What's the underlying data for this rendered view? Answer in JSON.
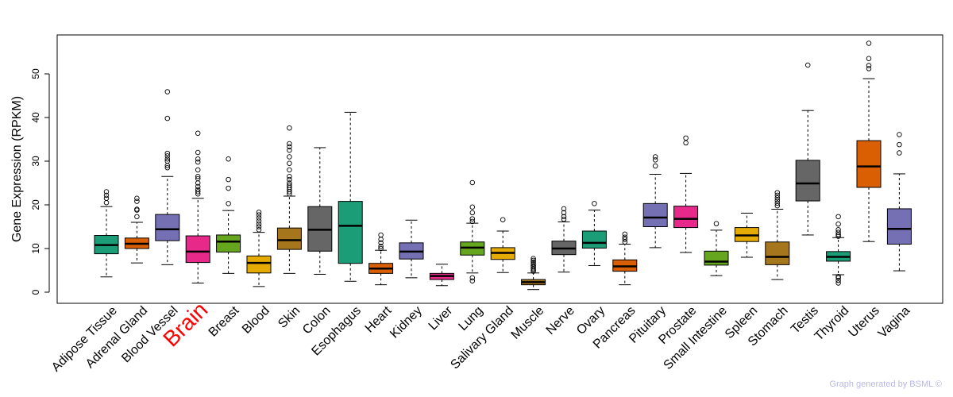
{
  "chart_data": {
    "type": "boxplot",
    "ylabel": "Gene Expression (RPKM)",
    "ylim": [
      -2,
      58
    ],
    "yticks": [
      0,
      10,
      20,
      30,
      40,
      50
    ],
    "highlight_category": "Brain",
    "highlight_color": "#ff0000",
    "categories": [
      {
        "name": "Adipose Tissue",
        "color": "#1b9e77",
        "whisker_low": 3.5,
        "q1": 8.8,
        "median": 10.8,
        "q3": 13.0,
        "whisker_high": 19.6,
        "outliers": [
          20.5,
          21.5,
          22.2,
          23.0
        ]
      },
      {
        "name": "Adrenal Gland",
        "color": "#d95f02",
        "whisker_low": 6.7,
        "q1": 10.0,
        "median": 11.1,
        "q3": 12.4,
        "whisker_high": 16.0,
        "outliers": [
          17.3,
          18.8,
          19.0,
          20.8,
          21.5
        ]
      },
      {
        "name": "Blood Vessel",
        "color": "#7570b3",
        "whisker_low": 6.3,
        "q1": 11.8,
        "median": 14.4,
        "q3": 17.8,
        "whisker_high": 26.5,
        "outliers": [
          28.5,
          29.0,
          30.0,
          30.5,
          31.2,
          31.8,
          39.8,
          45.9
        ]
      },
      {
        "name": "Brain",
        "color": "#e7298a",
        "whisker_low": 2.1,
        "q1": 6.8,
        "median": 9.3,
        "q3": 12.9,
        "whisker_high": 21.5,
        "outliers": [
          22.5,
          23.0,
          23.5,
          24.2,
          25.0,
          26.0,
          26.5,
          28.0,
          29.8,
          30.5,
          32.0,
          36.4
        ]
      },
      {
        "name": "Breast",
        "color": "#66a61e",
        "whisker_low": 4.3,
        "q1": 9.2,
        "median": 11.6,
        "q3": 13.1,
        "whisker_high": 18.7,
        "outliers": [
          20.3,
          23.8,
          25.8,
          30.5
        ]
      },
      {
        "name": "Blood",
        "color": "#e6ab02",
        "whisker_low": 1.3,
        "q1": 4.4,
        "median": 6.7,
        "q3": 8.3,
        "whisker_high": 13.7,
        "outliers": [
          14.3,
          15.0,
          15.6,
          16.3,
          17.0,
          17.7,
          18.3
        ]
      },
      {
        "name": "Skin",
        "color": "#a6761d",
        "whisker_low": 4.3,
        "q1": 9.8,
        "median": 11.9,
        "q3": 14.7,
        "whisker_high": 22.0,
        "outliers": [
          22.5,
          23.0,
          23.5,
          24.0,
          24.5,
          25.0,
          25.8,
          26.5,
          28.0,
          29.5,
          31.0,
          32.5,
          33.3,
          34.0,
          37.6
        ]
      },
      {
        "name": "Colon",
        "color": "#666666",
        "whisker_low": 4.1,
        "q1": 9.4,
        "median": 14.3,
        "q3": 19.6,
        "whisker_high": 33.1,
        "outliers": []
      },
      {
        "name": "Esophagus",
        "color": "#1b9e77",
        "whisker_low": 2.5,
        "q1": 6.6,
        "median": 15.2,
        "q3": 20.8,
        "whisker_high": 41.2,
        "outliers": []
      },
      {
        "name": "Heart",
        "color": "#d95f02",
        "whisker_low": 1.7,
        "q1": 4.3,
        "median": 5.4,
        "q3": 6.6,
        "whisker_high": 9.6,
        "outliers": [
          10.0,
          10.5,
          11.3,
          12.1,
          13.1
        ]
      },
      {
        "name": "Kidney",
        "color": "#7570b3",
        "whisker_low": 3.3,
        "q1": 7.6,
        "median": 9.3,
        "q3": 11.3,
        "whisker_high": 16.5,
        "outliers": []
      },
      {
        "name": "Liver",
        "color": "#e7298a",
        "whisker_low": 1.5,
        "q1": 2.9,
        "median": 3.7,
        "q3": 4.3,
        "whisker_high": 6.4,
        "outliers": []
      },
      {
        "name": "Lung",
        "color": "#66a61e",
        "whisker_low": 4.4,
        "q1": 8.5,
        "median": 10.2,
        "q3": 11.5,
        "whisker_high": 15.8,
        "outliers": [
          2.6,
          3.3,
          16.2,
          16.8,
          18.2,
          19.5,
          25.1
        ]
      },
      {
        "name": "Salivary Gland",
        "color": "#e6ab02",
        "whisker_low": 4.5,
        "q1": 7.5,
        "median": 9.0,
        "q3": 10.2,
        "whisker_high": 14.0,
        "outliers": [
          16.6
        ]
      },
      {
        "name": "Muscle",
        "color": "#a6761d",
        "whisker_low": 0.6,
        "q1": 1.7,
        "median": 2.3,
        "q3": 2.9,
        "whisker_high": 4.4,
        "outliers": [
          4.8,
          5.1,
          5.4,
          5.8,
          6.1,
          6.5,
          6.9,
          7.3,
          7.7
        ]
      },
      {
        "name": "Nerve",
        "color": "#666666",
        "whisker_low": 4.6,
        "q1": 8.6,
        "median": 10.0,
        "q3": 11.7,
        "whisker_high": 16.1,
        "outliers": [
          16.7,
          17.3,
          18.2,
          19.1
        ]
      },
      {
        "name": "Ovary",
        "color": "#1b9e77",
        "whisker_low": 6.1,
        "q1": 10.1,
        "median": 11.3,
        "q3": 14.0,
        "whisker_high": 18.8,
        "outliers": [
          20.3
        ]
      },
      {
        "name": "Pancreas",
        "color": "#d95f02",
        "whisker_low": 1.7,
        "q1": 4.8,
        "median": 5.9,
        "q3": 7.4,
        "whisker_high": 11.0,
        "outliers": [
          11.5,
          12.1,
          12.6,
          13.3
        ]
      },
      {
        "name": "Pituitary",
        "color": "#7570b3",
        "whisker_low": 10.2,
        "q1": 15.0,
        "median": 17.1,
        "q3": 20.3,
        "whisker_high": 27.0,
        "outliers": [
          28.9,
          30.3,
          31.0
        ]
      },
      {
        "name": "Prostate",
        "color": "#e7298a",
        "whisker_low": 9.1,
        "q1": 14.8,
        "median": 16.8,
        "q3": 19.7,
        "whisker_high": 27.2,
        "outliers": [
          34.2,
          35.3
        ]
      },
      {
        "name": "Small Intestine",
        "color": "#66a61e",
        "whisker_low": 3.8,
        "q1": 6.2,
        "median": 7.0,
        "q3": 9.4,
        "whisker_high": 14.2,
        "outliers": [
          15.7
        ]
      },
      {
        "name": "Spleen",
        "color": "#e6ab02",
        "whisker_low": 8.0,
        "q1": 11.6,
        "median": 13.0,
        "q3": 14.8,
        "whisker_high": 18.1,
        "outliers": []
      },
      {
        "name": "Stomach",
        "color": "#a6761d",
        "whisker_low": 2.9,
        "q1": 6.3,
        "median": 8.1,
        "q3": 11.5,
        "whisker_high": 19.0,
        "outliers": [
          19.8,
          20.4,
          21.0,
          21.6,
          22.2,
          22.8
        ]
      },
      {
        "name": "Testis",
        "color": "#666666",
        "whisker_low": 13.1,
        "q1": 20.9,
        "median": 24.9,
        "q3": 30.2,
        "whisker_high": 41.6,
        "outliers": [
          52.0
        ]
      },
      {
        "name": "Thyroid",
        "color": "#1b9e77",
        "whisker_low": 4.0,
        "q1": 7.1,
        "median": 8.1,
        "q3": 9.3,
        "whisker_high": 12.5,
        "outliers": [
          2.1,
          2.7,
          3.3,
          3.6,
          12.8,
          13.2,
          13.7,
          14.3,
          15.6,
          17.3
        ]
      },
      {
        "name": "Uterus",
        "color": "#d95f02",
        "whisker_low": 11.6,
        "q1": 24.0,
        "median": 28.8,
        "q3": 34.7,
        "whisker_high": 48.9,
        "outliers": [
          51.2,
          51.9,
          53.5,
          57.0
        ]
      },
      {
        "name": "Vagina",
        "color": "#7570b3",
        "whisker_low": 4.9,
        "q1": 11.0,
        "median": 14.5,
        "q3": 19.1,
        "whisker_high": 27.1,
        "outliers": [
          31.9,
          33.8,
          36.1
        ]
      }
    ]
  },
  "credit": "Graph generated by BSML ©"
}
